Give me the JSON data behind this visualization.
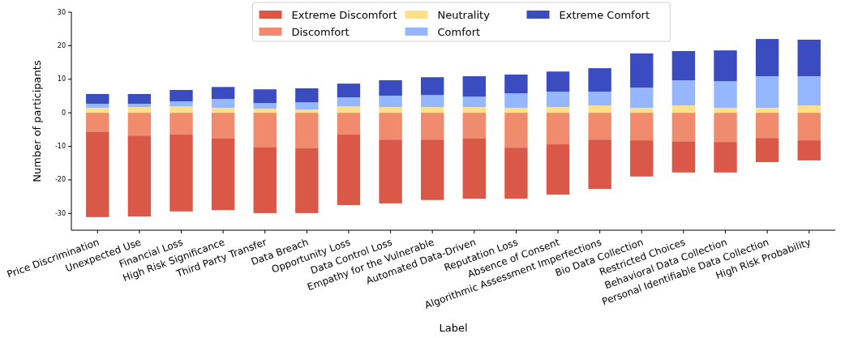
{
  "chart_data": {
    "type": "bar",
    "stacked": true,
    "xlabel": "Label",
    "ylabel": "Number of participants",
    "categories": [
      "Price Discrimination",
      "Unexpected Use",
      "Financial Loss",
      "High Risk Significance",
      "Third Party Transfer",
      "Data Breach",
      "Opportunity Loss",
      "Data Control Loss",
      "Empathy for the Vulnerable",
      "Automated Data-Driven",
      "Reputation Loss",
      "Absence of Consent",
      "Algorithmic Assessment Imperfections",
      "Bio Data Collection",
      "Restricted Choices",
      "Behavioral Data Collection",
      "Personal Identifiable Data Collection",
      "High Risk Probability"
    ],
    "series": [
      {
        "name": "Extreme Discomfort",
        "color": "#d95847",
        "values": [
          -25.5,
          -24.1,
          -22.9,
          -21.3,
          -19.7,
          -19.3,
          -21.0,
          -19.0,
          -18.0,
          -17.9,
          -15.2,
          -15.0,
          -14.7,
          -10.8,
          -9.3,
          -9.1,
          -7.2,
          -6.0
        ]
      },
      {
        "name": "Discomfort",
        "color": "#f08b6e",
        "values": [
          -5.6,
          -6.8,
          -6.5,
          -7.7,
          -10.2,
          -10.6,
          -6.5,
          -8.0,
          -8.0,
          -7.7,
          -10.4,
          -9.4,
          -8.0,
          -8.2,
          -8.5,
          -8.7,
          -7.5,
          -8.2
        ]
      },
      {
        "name": "Neutrality",
        "color": "#fee08b",
        "values": [
          1.5,
          1.7,
          1.9,
          1.5,
          1.2,
          1.0,
          1.9,
          1.7,
          1.7,
          1.7,
          1.5,
          1.7,
          2.2,
          1.5,
          2.2,
          1.5,
          1.5,
          2.2
        ]
      },
      {
        "name": "Comfort",
        "color": "#96b7ff",
        "values": [
          1.2,
          1.0,
          1.5,
          2.6,
          1.7,
          2.1,
          2.7,
          3.4,
          3.6,
          3.1,
          4.3,
          4.6,
          4.1,
          6.0,
          7.5,
          7.9,
          9.4,
          8.7
        ]
      },
      {
        "name": "Extreme Comfort",
        "color": "#3b4cc0",
        "values": [
          2.9,
          2.9,
          3.4,
          3.6,
          4.1,
          4.2,
          4.1,
          4.6,
          5.3,
          6.1,
          5.6,
          6.0,
          7.0,
          10.2,
          8.7,
          9.2,
          11.1,
          10.9
        ]
      }
    ],
    "ylim": [
      -35,
      30
    ],
    "yticks": [
      -30,
      -20,
      -10,
      0,
      10,
      20,
      30
    ],
    "legend": "top"
  }
}
